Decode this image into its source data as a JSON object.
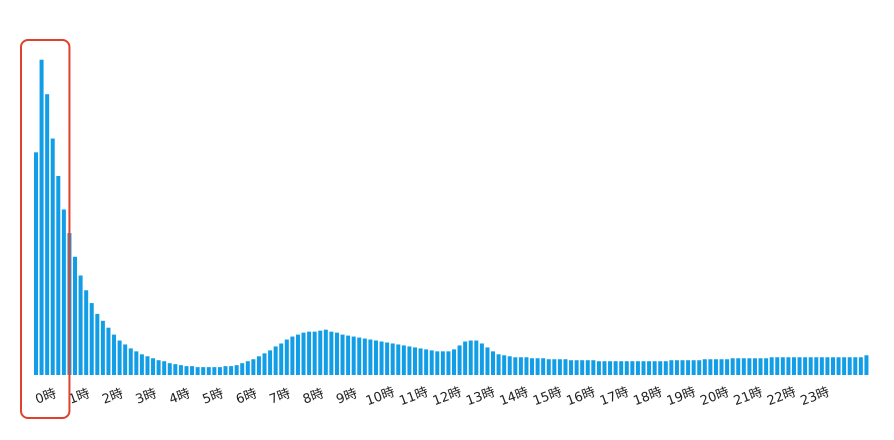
{
  "chart_data": {
    "type": "bar",
    "bins_per_hour": 6,
    "tick_labels": [
      "0時",
      "1時",
      "2時",
      "3時",
      "4時",
      "5時",
      "6時",
      "7時",
      "8時",
      "9時",
      "10時",
      "11時",
      "12時",
      "13時",
      "14時",
      "15時",
      "16時",
      "17時",
      "18時",
      "19時",
      "20時",
      "21時",
      "22時",
      "23時"
    ],
    "values": [
      226,
      320,
      285,
      240,
      202,
      168,
      144,
      120,
      101,
      86,
      73,
      62,
      55,
      48,
      41,
      35,
      31,
      27,
      24,
      21,
      19,
      17,
      15,
      14,
      12,
      11,
      10,
      9,
      9,
      8,
      8,
      8,
      8,
      8,
      9,
      9,
      10,
      12,
      14,
      16,
      19,
      22,
      25,
      29,
      32,
      36,
      39,
      41,
      43,
      44,
      44,
      45,
      46,
      44,
      43,
      41,
      40,
      39,
      38,
      37,
      36,
      35,
      34,
      33,
      32,
      31,
      30,
      29,
      28,
      27,
      26,
      25,
      24,
      24,
      24,
      26,
      30,
      34,
      35,
      35,
      32,
      28,
      24,
      21,
      20,
      19,
      18,
      18,
      18,
      17,
      17,
      17,
      16,
      16,
      16,
      16,
      15,
      15,
      15,
      15,
      15,
      14,
      14,
      14,
      14,
      14,
      14,
      14,
      14,
      14,
      14,
      14,
      14,
      14,
      15,
      15,
      15,
      15,
      15,
      15,
      16,
      16,
      16,
      16,
      16,
      17,
      17,
      17,
      17,
      17,
      17,
      17,
      18,
      18,
      18,
      18,
      18,
      18,
      18,
      18,
      18,
      18,
      18,
      18,
      18,
      18,
      18,
      18,
      18,
      20
    ],
    "bar_color": "#129ee6",
    "highlight_color": "#e0412d",
    "highlight_range": [
      0,
      5
    ],
    "ylim": [
      0,
      340
    ],
    "grid": false
  }
}
